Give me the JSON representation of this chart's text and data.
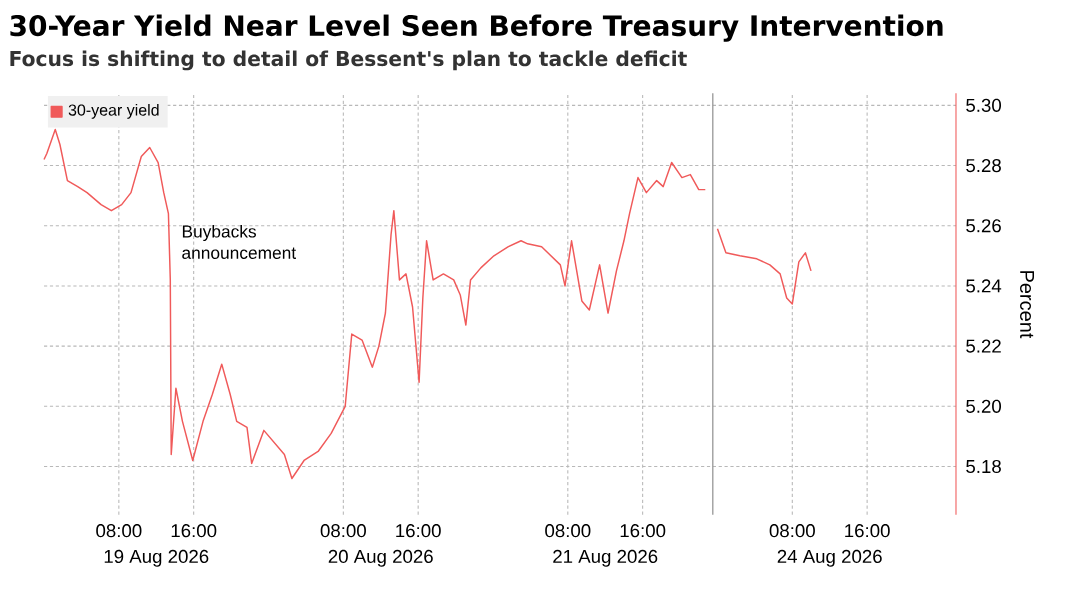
{
  "chart_data": [
    {
      "type": "line",
      "title": "30-Year Yield Near Level Seen Before Treasury Intervention",
      "subtitle": "Focus is shifting to detail of Bessent's plan to tackle deficit",
      "x": [
        "2026-08-19T00:00",
        "2026-08-19T00:18",
        "2026-08-19T01:12",
        "2026-08-19T01:42",
        "2026-08-19T02:30",
        "2026-08-19T03:36",
        "2026-08-19T04:36",
        "2026-08-19T06:06",
        "2026-08-19T07:12",
        "2026-08-19T08:18",
        "2026-08-19T09:18",
        "2026-08-19T10:24",
        "2026-08-19T11:18",
        "2026-08-19T12:12",
        "2026-08-19T12:48",
        "2026-08-19T13:18",
        "2026-08-19T13:30",
        "2026-08-19T13:36",
        "2026-08-19T14:06",
        "2026-08-19T14:48",
        "2026-08-19T15:54",
        "2026-08-19T17:00",
        "2026-08-19T18:00",
        "2026-08-19T19:00",
        "2026-08-19T19:54",
        "2026-08-19T20:36",
        "2026-08-19T21:42",
        "2026-08-19T22:12",
        "2026-08-19T23:30",
        "2026-08-20T00:36",
        "2026-08-20T01:42",
        "2026-08-20T02:30",
        "2026-08-20T03:48",
        "2026-08-20T05:18",
        "2026-08-20T06:42",
        "2026-08-20T08:12",
        "2026-08-20T08:54",
        "2026-08-20T10:00",
        "2026-08-20T11:06",
        "2026-08-20T11:48",
        "2026-08-20T12:30",
        "2026-08-20T13:06",
        "2026-08-20T13:24",
        "2026-08-20T14:00",
        "2026-08-20T14:42",
        "2026-08-20T15:24",
        "2026-08-20T16:06",
        "2026-08-20T16:30",
        "2026-08-20T16:54",
        "2026-08-20T17:36",
        "2026-08-20T18:42",
        "2026-08-20T19:48",
        "2026-08-20T20:30",
        "2026-08-20T21:06",
        "2026-08-20T21:36",
        "2026-08-20T22:42",
        "2026-08-21T00:06",
        "2026-08-21T01:36",
        "2026-08-21T03:00",
        "2026-08-21T03:42",
        "2026-08-21T05:12",
        "2026-08-21T07:12",
        "2026-08-21T07:42",
        "2026-08-21T08:24",
        "2026-08-21T09:30",
        "2026-08-21T10:18",
        "2026-08-21T11:24",
        "2026-08-21T12:18",
        "2026-08-21T13:12",
        "2026-08-21T14:00",
        "2026-08-21T14:36",
        "2026-08-21T15:30",
        "2026-08-21T16:24",
        "2026-08-21T17:30",
        "2026-08-21T18:12",
        "2026-08-21T19:06",
        "2026-08-21T20:12",
        "2026-08-21T21:06",
        "2026-08-21T22:00",
        "2026-08-21T22:42"
      ],
      "series": [
        {
          "name": "30-year yield",
          "color": "#f05a5a",
          "values": [
            5.282,
            5.284,
            5.292,
            5.287,
            5.275,
            5.273,
            5.271,
            5.267,
            5.265,
            5.267,
            5.271,
            5.283,
            5.286,
            5.281,
            5.271,
            5.264,
            5.242,
            5.184,
            5.206,
            5.195,
            5.182,
            5.195,
            5.204,
            5.214,
            5.204,
            5.195,
            5.193,
            5.181,
            5.192,
            5.188,
            5.184,
            5.176,
            5.182,
            5.185,
            5.191,
            5.2,
            5.224,
            5.222,
            5.213,
            5.22,
            5.231,
            5.257,
            5.265,
            5.242,
            5.244,
            5.233,
            5.208,
            5.236,
            5.255,
            5.242,
            5.244,
            5.242,
            5.237,
            5.227,
            5.242,
            5.246,
            5.25,
            5.253,
            5.255,
            5.254,
            5.253,
            5.247,
            5.24,
            5.255,
            5.235,
            5.232,
            5.247,
            5.231,
            5.245,
            5.255,
            5.264,
            5.276,
            5.271,
            5.275,
            5.273,
            5.281,
            5.276,
            5.277,
            5.272,
            5.272
          ]
        }
      ],
      "xlim": [
        "2026-08-19T00:00",
        "2026-08-21T23:30"
      ],
      "xticks": [
        {
          "value": "2026-08-19T08:00",
          "label": "08:00"
        },
        {
          "value": "2026-08-19T16:00",
          "label": "16:00"
        },
        {
          "value": "2026-08-20T08:00",
          "label": "08:00"
        },
        {
          "value": "2026-08-20T16:00",
          "label": "16:00"
        },
        {
          "value": "2026-08-21T08:00",
          "label": "08:00"
        },
        {
          "value": "2026-08-21T16:00",
          "label": "16:00"
        }
      ],
      "ylim": [
        5.164,
        5.304
      ],
      "yticks": [
        5.18,
        5.2,
        5.22,
        5.24,
        5.26,
        5.28,
        5.3
      ],
      "tick_labels": "x",
      "annotations": [
        {
          "text": "Buybacks announcement",
          "x": "2026-08-19T13:30",
          "y": 5.264
        },
        "19 Aug 2026",
        "20 Aug 2026",
        "21 Aug 2026"
      ],
      "grid": true,
      "legend": "top left"
    },
    {
      "type": "line",
      "ylabel": "Percent",
      "x": [
        "2026-08-24T00:00",
        "2026-08-24T00:54",
        "2026-08-24T02:24",
        "2026-08-24T04:12",
        "2026-08-24T05:36",
        "2026-08-24T06:42",
        "2026-08-24T07:24",
        "2026-08-24T08:00",
        "2026-08-24T08:42",
        "2026-08-24T09:24",
        "2026-08-24T10:00"
      ],
      "series": [
        {
          "color": "#f05a5a",
          "values": [
            5.259,
            5.251,
            5.25,
            5.249,
            5.247,
            5.244,
            5.236,
            5.234,
            5.248,
            5.251,
            5.245
          ]
        }
      ],
      "xlim": [
        "2026-08-23T23:30",
        "2026-08-25T01:30"
      ],
      "xticks": [
        {
          "value": "2026-08-24T08:00",
          "label": "08:00"
        },
        {
          "value": "2026-08-24T16:00",
          "label": "16:00"
        }
      ],
      "ylim": [
        5.164,
        5.304
      ],
      "yticks": [
        5.18,
        {
          "value": 5.2,
          "label": "5.20"
        },
        5.22,
        5.24,
        5.26,
        5.28,
        {
          "value": 5.3,
          "label": "5.30"
        }
      ],
      "annotations": [
        "24 Aug 2026"
      ],
      "grid": true
    }
  ]
}
